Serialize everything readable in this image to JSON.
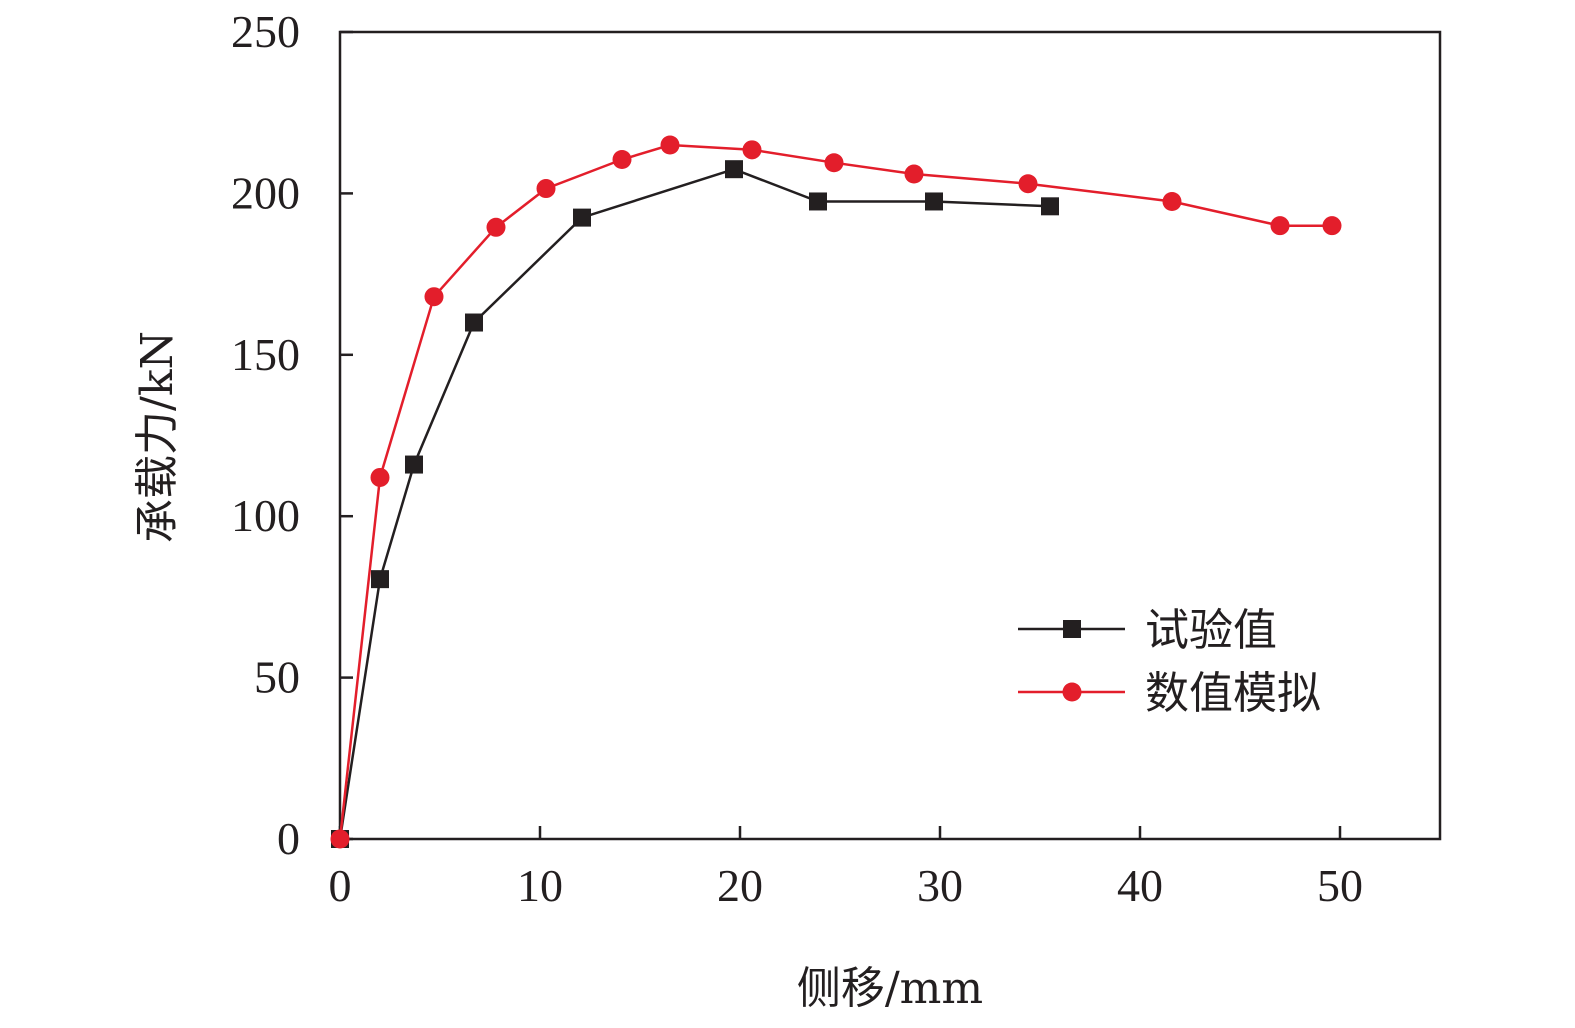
{
  "chart_data": {
    "type": "line",
    "xlabel": "侧移/mm",
    "ylabel": "承载力/kN",
    "xlim": [
      0,
      55
    ],
    "ylim": [
      0,
      250
    ],
    "xticks": [
      "0",
      "10",
      "20",
      "30",
      "40",
      "50"
    ],
    "yticks": [
      "0",
      "50",
      "100",
      "150",
      "200",
      "250"
    ],
    "grid": false,
    "legend_position": "bottom-right",
    "series": [
      {
        "name": "试验值",
        "color": "#231f20",
        "marker": "square",
        "points": [
          [
            0,
            0
          ],
          [
            2.0,
            80.5
          ],
          [
            3.7,
            116
          ],
          [
            6.7,
            160
          ],
          [
            12.1,
            192.5
          ],
          [
            19.7,
            207.5
          ],
          [
            23.9,
            197.5
          ],
          [
            29.7,
            197.5
          ],
          [
            35.5,
            196
          ]
        ]
      },
      {
        "name": "数值模拟",
        "color": "#e31e2b",
        "marker": "circle",
        "points": [
          [
            0,
            0
          ],
          [
            2.0,
            112
          ],
          [
            4.7,
            168
          ],
          [
            7.8,
            189.5
          ],
          [
            10.3,
            201.5
          ],
          [
            14.1,
            210.5
          ],
          [
            16.5,
            215
          ],
          [
            20.6,
            213.5
          ],
          [
            24.7,
            209.5
          ],
          [
            28.7,
            206
          ],
          [
            34.4,
            203
          ],
          [
            41.6,
            197.5
          ],
          [
            47.0,
            190
          ],
          [
            49.6,
            190
          ]
        ]
      }
    ]
  }
}
